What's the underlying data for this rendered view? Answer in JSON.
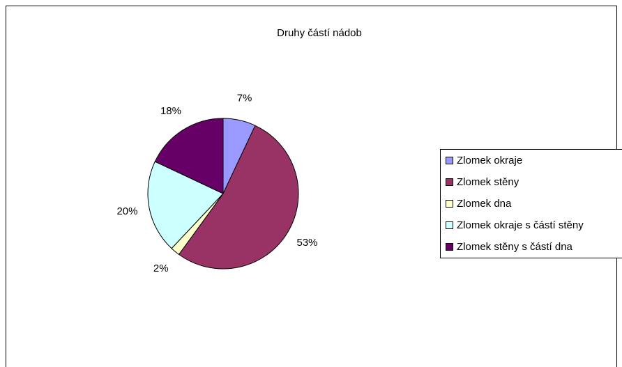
{
  "chart_data": {
    "type": "pie",
    "title": "Druhy částí nádob",
    "categories": [
      "Zlomek okraje",
      "Zlomek stěny",
      "Zlomek dna",
      "Zlomek okraje s částí stěny",
      "Zlomek stěny s částí dna"
    ],
    "values": [
      7,
      53,
      2,
      20,
      18
    ],
    "value_labels": [
      "7%",
      "53%",
      "2%",
      "20%",
      "18%"
    ],
    "colors": [
      "#9999ff",
      "#993366",
      "#ffffcc",
      "#ccffff",
      "#660066"
    ],
    "legend": "right"
  }
}
